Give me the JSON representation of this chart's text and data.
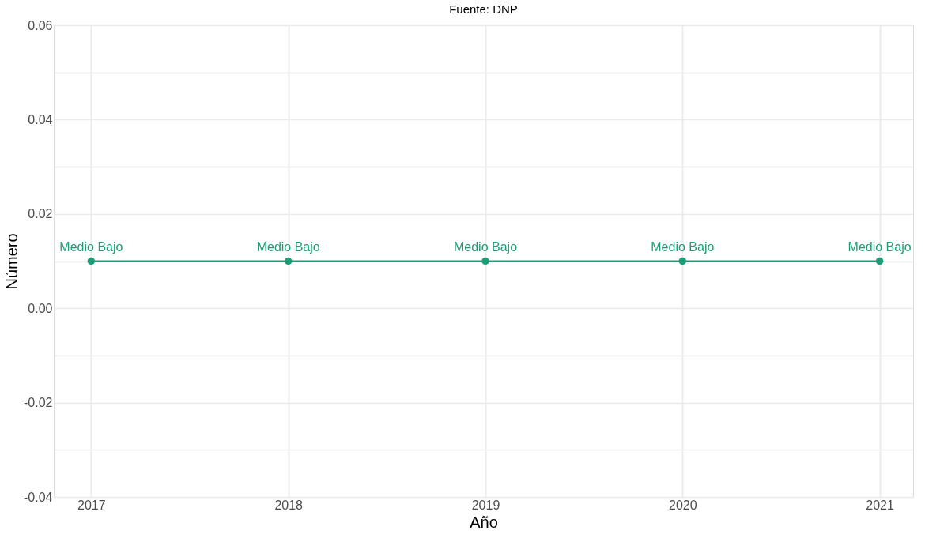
{
  "chart_data": {
    "type": "line",
    "annotations": [
      "Fuente: DNP"
    ],
    "xlabel": "Año",
    "ylabel": "Número",
    "x": [
      2017,
      2018,
      2019,
      2020,
      2021
    ],
    "series": [
      {
        "color": "#1b9e77",
        "values": [
          0.01,
          0.01,
          0.01,
          0.01,
          0.01
        ],
        "value_labels": [
          "Medio Bajo",
          "Medio Bajo",
          "Medio Bajo",
          "Medio Bajo",
          "Medio Bajo"
        ]
      }
    ],
    "xlim": [
      2016.81,
      2021.17
    ],
    "xticks": [
      2017,
      2018,
      2019,
      2020,
      2021
    ],
    "ylim": [
      -0.04,
      0.06
    ],
    "yticks": [
      {
        "value": -0.04,
        "label": "-0.04"
      },
      {
        "value": -0.03,
        "label": null
      },
      {
        "value": -0.02,
        "label": "-0.02"
      },
      {
        "value": -0.01,
        "label": null
      },
      {
        "value": 0,
        "label": "0.00"
      },
      {
        "value": 0.01,
        "label": null
      },
      0.02,
      {
        "value": 0.03,
        "label": null
      },
      0.04,
      {
        "value": 0.05,
        "label": null
      },
      0.06
    ],
    "grid": true,
    "marker": "circle",
    "line_style": "solid"
  }
}
